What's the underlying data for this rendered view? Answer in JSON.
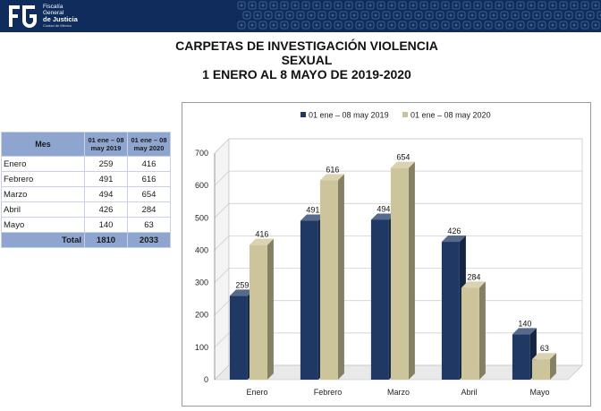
{
  "header": {
    "org_line1": "Fiscalía",
    "org_line2": "General",
    "org_line3": "de Justicia",
    "org_line4": "Ciudad de México"
  },
  "title": {
    "line1": "CARPETAS DE INVESTIGACIÓN VIOLENCIA",
    "line2": "SEXUAL",
    "line3": "1 ENERO AL 8 MAYO DE 2019-2020"
  },
  "table": {
    "col_mes": "Mes",
    "col_2019": "01 ene – 08 may 2019",
    "col_2020": "01 ene – 08 may 2020",
    "rows": [
      {
        "mes": "Enero",
        "v2019": "259",
        "v2020": "416"
      },
      {
        "mes": "Febrero",
        "v2019": "491",
        "v2020": "616"
      },
      {
        "mes": "Marzo",
        "v2019": "494",
        "v2020": "654"
      },
      {
        "mes": "Abril",
        "v2019": "426",
        "v2020": "284"
      },
      {
        "mes": "Mayo",
        "v2019": "140",
        "v2020": "63"
      }
    ],
    "total_label": "Total",
    "total_2019": "1810",
    "total_2020": "2033"
  },
  "chart_data": {
    "type": "bar",
    "title": "",
    "xlabel": "",
    "ylabel": "",
    "categories": [
      "Enero",
      "Febrero",
      "Marzo",
      "Abril",
      "Mayo"
    ],
    "series": [
      {
        "name": "01 ene – 08 may 2019",
        "values": [
          259,
          491,
          494,
          426,
          140
        ],
        "color": "#1f3864"
      },
      {
        "name": "01 ene – 08 may 2020",
        "values": [
          416,
          616,
          654,
          284,
          63
        ],
        "color": "#ccc49a"
      }
    ],
    "ylim": [
      0,
      700
    ],
    "yticks": [
      0,
      100,
      200,
      300,
      400,
      500,
      600,
      700
    ],
    "grid": true,
    "legend": "top",
    "style": "3d-column"
  },
  "colors": {
    "banner": "#0f2c5c",
    "table_header": "#8ea6cf",
    "series_2019": "#1f3864",
    "series_2020": "#ccc49a"
  }
}
